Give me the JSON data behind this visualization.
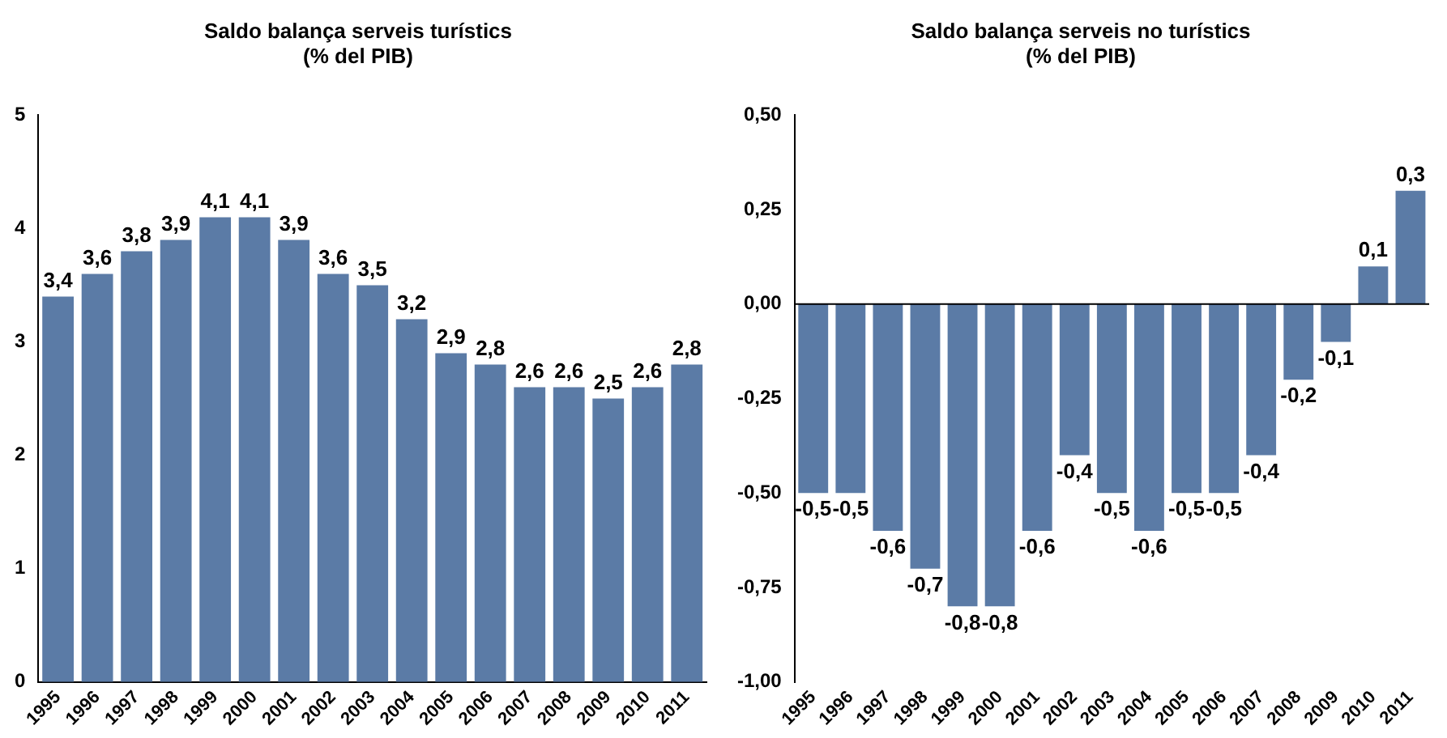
{
  "chart_data": [
    {
      "type": "bar",
      "title": "Saldo balança serveis turístics\n(% del PIB)",
      "categories": [
        "1995",
        "1996",
        "1997",
        "1998",
        "1999",
        "2000",
        "2001",
        "2002",
        "2003",
        "2004",
        "2005",
        "2006",
        "2007",
        "2008",
        "2009",
        "2010",
        "2011"
      ],
      "values": [
        3.4,
        3.6,
        3.8,
        3.9,
        4.1,
        4.1,
        3.9,
        3.6,
        3.5,
        3.2,
        2.9,
        2.8,
        2.6,
        2.6,
        2.5,
        2.6,
        2.8
      ],
      "value_labels": [
        "3,4",
        "3,6",
        "3,8",
        "3,9",
        "4,1",
        "4,1",
        "3,9",
        "3,6",
        "3,5",
        "3,2",
        "2,9",
        "2,8",
        "2,6",
        "2,6",
        "2,5",
        "2,6",
        "2,8"
      ],
      "color": "#5b7ba6",
      "ylim": [
        0,
        5
      ],
      "yticks": [
        0,
        1,
        2,
        3,
        4,
        5
      ],
      "grid": false,
      "legend": false
    },
    {
      "type": "bar",
      "title": "Saldo balança serveis no turístics\n(% del PIB)",
      "categories": [
        "1995",
        "1996",
        "1997",
        "1998",
        "1999",
        "2000",
        "2001",
        "2002",
        "2003",
        "2004",
        "2005",
        "2006",
        "2007",
        "2008",
        "2009",
        "2010",
        "2011"
      ],
      "values": [
        -0.5,
        -0.5,
        -0.6,
        -0.7,
        -0.8,
        -0.8,
        -0.6,
        -0.4,
        -0.5,
        -0.6,
        -0.5,
        -0.5,
        -0.4,
        -0.2,
        -0.1,
        0.1,
        0.3
      ],
      "value_labels": [
        "-0,5",
        "-0,5",
        "-0,6",
        "-0,7",
        "-0,8",
        "-0,8",
        "-0,6",
        "-0,4",
        "-0,5",
        "-0,6",
        "-0,5",
        "-0,5",
        "-0,4",
        "-0,2",
        "-0,1",
        "0,1",
        "0,3"
      ],
      "color": "#5b7ba6",
      "ylim": [
        -1,
        0.5
      ],
      "yticks": [
        {
          "value": -1,
          "label": "-1,00"
        },
        {
          "value": -0.75,
          "label": "-0,75"
        },
        {
          "value": -0.5,
          "label": "-0,50"
        },
        {
          "value": -0.25,
          "label": "-0,25"
        },
        {
          "value": 0,
          "label": "0,00"
        },
        {
          "value": 0.25,
          "label": "0,25"
        },
        {
          "value": 0.5,
          "label": "0,50"
        }
      ],
      "grid": false,
      "legend": false,
      "ref_lines": [
        {
          "axis": "y",
          "value": 0,
          "color": "#000000"
        }
      ]
    }
  ]
}
